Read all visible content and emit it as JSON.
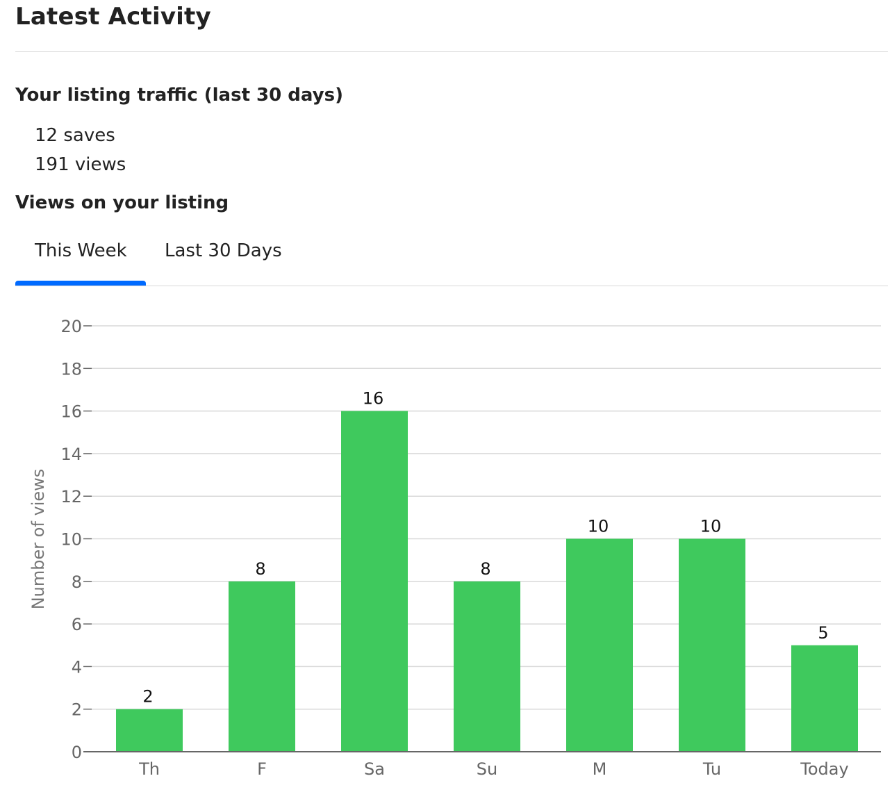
{
  "header": {
    "title": "Latest Activity"
  },
  "traffic": {
    "heading": "Your listing traffic (last 30 days)",
    "saves": "12 saves",
    "views": "191 views"
  },
  "views_section": {
    "heading": "Views on your listing",
    "tabs": [
      {
        "label": "This Week",
        "active": true
      },
      {
        "label": "Last 30 Days",
        "active": false
      }
    ]
  },
  "colors": {
    "bar": "#3fc95d",
    "tab_active": "#006aff",
    "grid": "#d9d9d9",
    "axis": "#666666"
  },
  "chart_data": {
    "type": "bar",
    "categories": [
      "Th",
      "F",
      "Sa",
      "Su",
      "M",
      "Tu",
      "Today"
    ],
    "values": [
      2,
      8,
      16,
      8,
      10,
      10,
      5
    ],
    "data_labels": true,
    "title": "",
    "xlabel": "",
    "ylabel": "Number of views",
    "ylim": [
      0,
      20
    ],
    "yticks": [
      0,
      2,
      4,
      6,
      8,
      10,
      12,
      14,
      16,
      18,
      20
    ],
    "grid": true,
    "legend": false
  }
}
